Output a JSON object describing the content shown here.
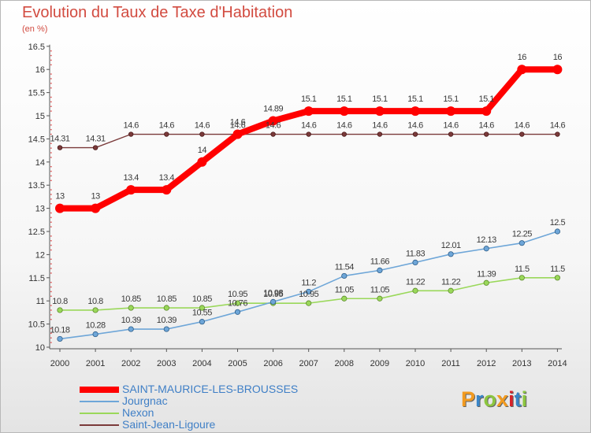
{
  "title": "Evolution du Taux de Taxe d'Habitation",
  "subtitle": "(en %)",
  "logo": {
    "letters": [
      "P",
      "r",
      "o",
      "x",
      "i",
      "t",
      "i"
    ],
    "colors": [
      "#f29a1f",
      "#3a86c8",
      "#8cc63f",
      "#f29a1f",
      "#d8232a",
      "#3a86c8",
      "#8cc63f"
    ]
  },
  "chart_data": {
    "type": "line",
    "title": "Evolution du Taux de Taxe d'Habitation",
    "ylabel": "(en %)",
    "xlabel": "",
    "x": [
      "2000",
      "2001",
      "2002",
      "2003",
      "2004",
      "2005",
      "2006",
      "2007",
      "2008",
      "2009",
      "2010",
      "2011",
      "2012",
      "2013",
      "2014"
    ],
    "ylim": [
      10,
      16.5
    ],
    "yticks": [
      "10",
      "10.5",
      "11",
      "11.5",
      "12",
      "12.5",
      "13",
      "13.5",
      "14",
      "14.5",
      "15",
      "15.5",
      "16",
      "16.5"
    ],
    "grid": false,
    "legend": "bottom-left",
    "series": [
      {
        "name": "SAINT-MAURICE-LES-BROUSSES",
        "color": "#ff0000",
        "marker_stroke": "#ff0000",
        "values": [
          13,
          13,
          13.4,
          13.4,
          14,
          14.6,
          14.89,
          15.1,
          15.1,
          15.1,
          15.1,
          15.1,
          15.1,
          16,
          16
        ],
        "labels": [
          "13",
          "13",
          "13.4",
          "13.4",
          "14",
          "14.6",
          "14.89",
          "15.1",
          "15.1",
          "15.1",
          "15.1",
          "15.1",
          "15.1",
          "16",
          "16"
        ]
      },
      {
        "name": "Jourgnac",
        "color": "#6ea6d8",
        "marker_stroke": "#2f5f8a",
        "values": [
          10.18,
          10.28,
          10.39,
          10.39,
          10.55,
          10.76,
          10.98,
          11.2,
          11.54,
          11.66,
          11.83,
          12.01,
          12.13,
          12.25,
          12.5
        ],
        "labels": [
          "10.18",
          "10.28",
          "10.39",
          "10.39",
          "10.55",
          "10.76",
          "10.98",
          "11.2",
          "11.54",
          "11.66",
          "11.83",
          "12.01",
          "12.13",
          "12.25",
          "12.5"
        ]
      },
      {
        "name": "Nexon",
        "color": "#9ad85a",
        "marker_stroke": "#5c8a2a",
        "values": [
          10.8,
          10.8,
          10.85,
          10.85,
          10.85,
          10.95,
          10.95,
          10.95,
          11.05,
          11.05,
          11.22,
          11.22,
          11.39,
          11.5,
          11.5
        ],
        "labels": [
          "10.8",
          "10.8",
          "10.85",
          "10.85",
          "10.85",
          "10.95",
          "10.95",
          "10.95",
          "11.05",
          "11.05",
          "11.22",
          "11.22",
          "11.39",
          "11.5",
          "11.5"
        ]
      },
      {
        "name": "Saint-Jean-Ligoure",
        "color": "#7a3a3a",
        "marker_stroke": "#4a1a1a",
        "values": [
          14.31,
          14.31,
          14.6,
          14.6,
          14.6,
          14.6,
          14.6,
          14.6,
          14.6,
          14.6,
          14.6,
          14.6,
          14.6,
          14.6,
          14.6
        ],
        "labels": [
          "14.31",
          "14.31",
          "14.6",
          "14.6",
          "14.6",
          "14.6",
          "14.6",
          "14.6",
          "14.6",
          "14.6",
          "14.6",
          "14.6",
          "14.6",
          "14.6",
          "14.6"
        ]
      }
    ]
  }
}
